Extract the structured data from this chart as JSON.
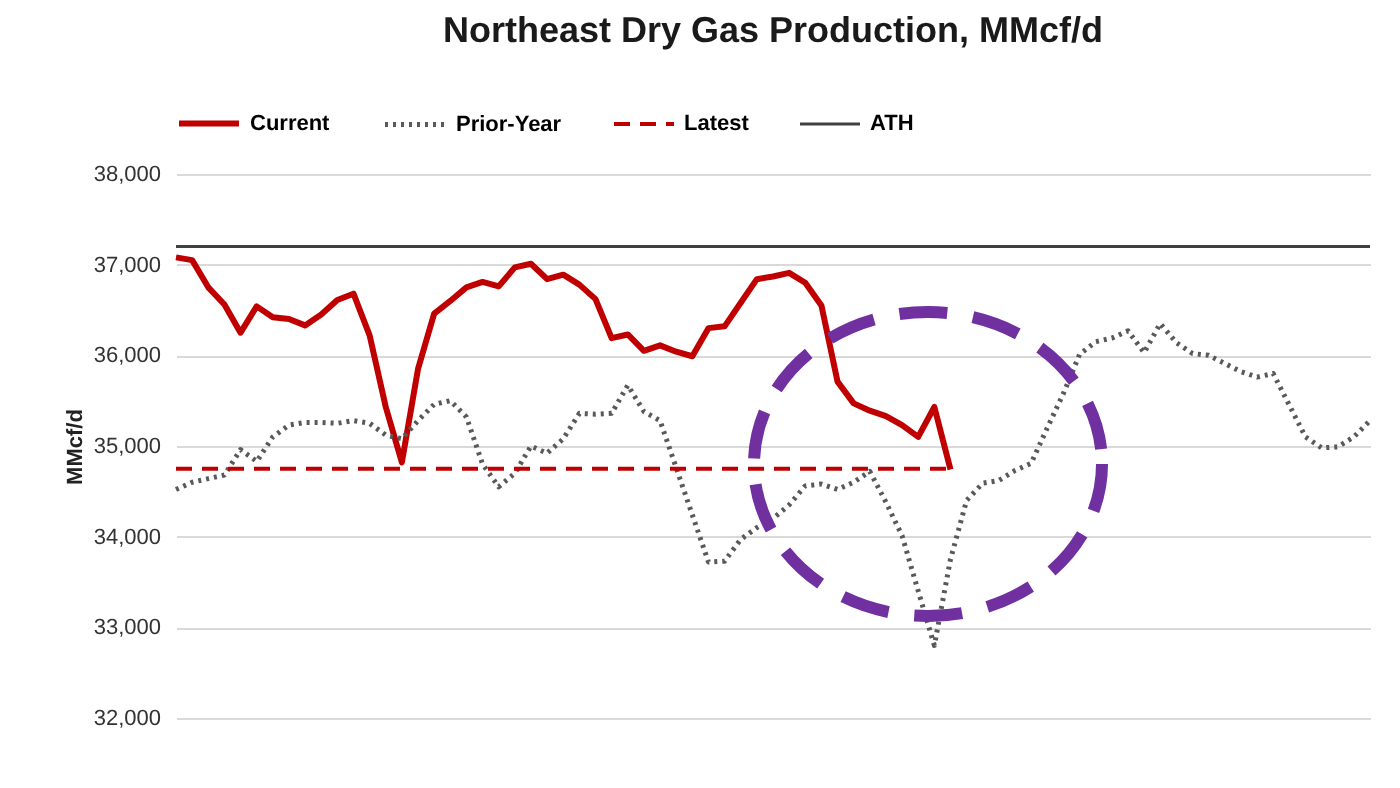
{
  "chart_data": {
    "type": "line",
    "title": "Northeast Dry Gas Production, MMcf/d",
    "ylabel": "MMcf/d",
    "categories": [
      null,
      null,
      null,
      null,
      null,
      null,
      null,
      null,
      null,
      null,
      null,
      null,
      null,
      null,
      null,
      null,
      null,
      null,
      null,
      null,
      null,
      null,
      null,
      null,
      null,
      null,
      null,
      null,
      null,
      null,
      null,
      null,
      null,
      null,
      null,
      null,
      null,
      null,
      null,
      null,
      null,
      null,
      null,
      null,
      null,
      null,
      null,
      null,
      null,
      null,
      null,
      null,
      null,
      null,
      null,
      null,
      null,
      null,
      null,
      null,
      null,
      null,
      null,
      null,
      null,
      null,
      null,
      null,
      null,
      null,
      null,
      null,
      null,
      null,
      null
    ],
    "series": [
      {
        "name": "Current",
        "color": "#c00000",
        "line_style": "solid",
        "values": [
          37080,
          37050,
          36750,
          36560,
          36250,
          36540,
          36420,
          36400,
          36330,
          36450,
          36610,
          36680,
          36220,
          35430,
          34820,
          35850,
          36460,
          36600,
          36750,
          36810,
          36760,
          36970,
          37010,
          36840,
          36890,
          36780,
          36620,
          36190,
          36230,
          36050,
          36110,
          36040,
          35990,
          36300,
          36320,
          36580,
          36840,
          36870,
          36910,
          36800,
          36550,
          35710,
          35470,
          35390,
          35330,
          35230,
          35100,
          35430,
          34740,
          null,
          null,
          null,
          null,
          null,
          null,
          null,
          null,
          null,
          null,
          null,
          null,
          null,
          null,
          null,
          null,
          null,
          null,
          null,
          null,
          null,
          null,
          null,
          null,
          null,
          null
        ]
      },
      {
        "name": "Prior-Year",
        "color": "#595959",
        "line_style": "dotted",
        "values": [
          34520,
          34600,
          34640,
          34680,
          34960,
          34830,
          35100,
          35230,
          35260,
          35260,
          35250,
          35280,
          35250,
          35120,
          35080,
          35280,
          35460,
          35500,
          35320,
          34800,
          34550,
          34700,
          35000,
          34920,
          35080,
          35360,
          35350,
          35360,
          35670,
          35380,
          35280,
          34760,
          34240,
          33720,
          33730,
          33970,
          34100,
          34200,
          34350,
          34560,
          34580,
          34520,
          34600,
          34720,
          34380,
          34010,
          33400,
          32800,
          33750,
          34400,
          34590,
          34620,
          34730,
          34810,
          35200,
          35580,
          36010,
          36150,
          36190,
          36270,
          36030,
          36350,
          36140,
          36020,
          36000,
          35910,
          35820,
          35760,
          35800,
          35450,
          35100,
          34980,
          34990,
          35100,
          35280
        ]
      },
      {
        "name": "Latest",
        "color": "#c00000",
        "line_style": "dashed",
        "values": [
          34750,
          34750,
          34750,
          34750,
          34750,
          34750,
          34750,
          34750,
          34750,
          34750,
          34750,
          34750,
          34750,
          34750,
          34750,
          34750,
          34750,
          34750,
          34750,
          34750,
          34750,
          34750,
          34750,
          34750,
          34750,
          34750,
          34750,
          34750,
          34750,
          34750,
          34750,
          34750,
          34750,
          34750,
          34750,
          34750,
          34750,
          34750,
          34750,
          34750,
          34750,
          34750,
          34750,
          34750,
          34750,
          34750,
          34750,
          34750,
          34750,
          null,
          null,
          null,
          null,
          null,
          null,
          null,
          null,
          null,
          null,
          null,
          null,
          null,
          null,
          null,
          null,
          null,
          null,
          null,
          null,
          null,
          null,
          null,
          null,
          null,
          null
        ]
      },
      {
        "name": "ATH",
        "color": "#404040",
        "line_style": "solid",
        "values": [
          37200,
          37200,
          37200,
          37200,
          37200,
          37200,
          37200,
          37200,
          37200,
          37200,
          37200,
          37200,
          37200,
          37200,
          37200,
          37200,
          37200,
          37200,
          37200,
          37200,
          37200,
          37200,
          37200,
          37200,
          37200,
          37200,
          37200,
          37200,
          37200,
          37200,
          37200,
          37200,
          37200,
          37200,
          37200,
          37200,
          37200,
          37200,
          37200,
          37200,
          37200,
          37200,
          37200,
          37200,
          37200,
          37200,
          37200,
          37200,
          37200,
          37200,
          37200,
          37200,
          37200,
          37200,
          37200,
          37200,
          37200,
          37200,
          37200,
          37200,
          37200,
          37200,
          37200,
          37200,
          37200,
          37200,
          37200,
          37200,
          37200,
          37200,
          37200,
          37200,
          37200,
          37200,
          37200
        ]
      }
    ],
    "ylim": [
      32000,
      38000
    ],
    "yticks": [
      {
        "value": 32000,
        "label": "32,000"
      },
      {
        "value": 33000,
        "label": "33,000"
      },
      {
        "value": 34000,
        "label": "34,000"
      },
      {
        "value": 35000,
        "label": "35,000"
      },
      {
        "value": 36000,
        "label": "36,000"
      },
      {
        "value": 37000,
        "label": "37,000"
      },
      {
        "value": 38000,
        "label": "38,000"
      }
    ],
    "grid": "y",
    "legend": "top",
    "marker": "none"
  }
}
